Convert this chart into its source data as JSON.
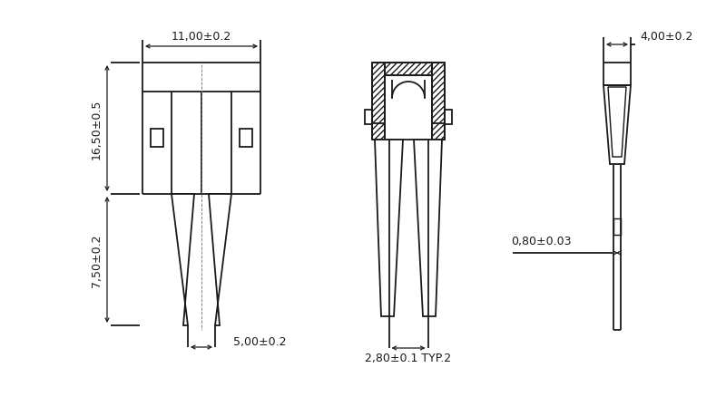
{
  "bg_color": "#ffffff",
  "annotations": {
    "dim_top": "11,00±0.2",
    "dim_left_top": "16,50±0.5",
    "dim_left_bot": "7,50±0.2",
    "dim_inner": "5,00±0.2",
    "dim_right_top": "4,00±0.2",
    "dim_right_mid": "0,80±0.03",
    "dim_bot": "2,80±0.1 TYP.2"
  }
}
